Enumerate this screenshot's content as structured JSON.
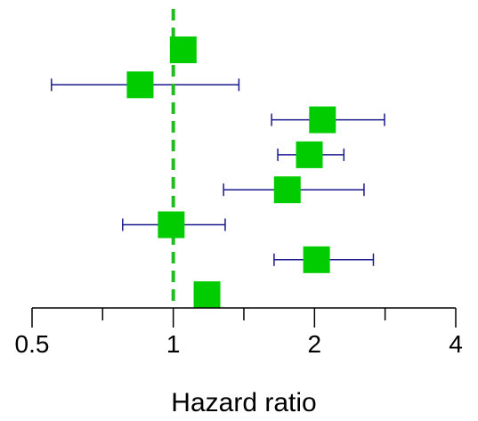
{
  "chart_data": {
    "type": "forest",
    "xlabel": "Hazard ratio",
    "xscale": "log",
    "xlim": [
      0.5,
      4
    ],
    "xticks_major": [
      0.5,
      1,
      2,
      4
    ],
    "xticks_minor": [
      0.707,
      1.414,
      2.828
    ],
    "tick_labels": [
      "0.5",
      "1",
      "2",
      "4"
    ],
    "reference_line": 1,
    "grid": false,
    "colors": {
      "point": "#00cc00",
      "ci": "#1a1a8c",
      "reference": "#22bb22",
      "axis": "#000000"
    },
    "rows": [
      {
        "hr": 1.05,
        "lower": null,
        "upper": null
      },
      {
        "hr": 0.85,
        "lower": 0.55,
        "upper": 1.38
      },
      {
        "hr": 2.08,
        "lower": 1.62,
        "upper": 2.82
      },
      {
        "hr": 1.95,
        "lower": 1.67,
        "upper": 2.31
      },
      {
        "hr": 1.75,
        "lower": 1.28,
        "upper": 2.55
      },
      {
        "hr": 0.99,
        "lower": 0.78,
        "upper": 1.29
      },
      {
        "hr": 2.02,
        "lower": 1.64,
        "upper": 2.67
      },
      {
        "hr": 1.18,
        "lower": null,
        "upper": null
      }
    ]
  }
}
